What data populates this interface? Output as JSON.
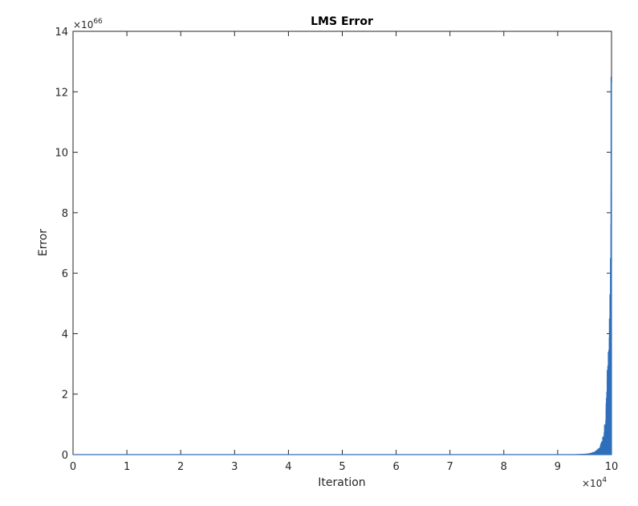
{
  "chart_data": {
    "type": "line",
    "title": "LMS Error",
    "xlabel": "Iteration",
    "ylabel": "Error",
    "x_multiplier": {
      "base": "×10",
      "exponent": "4"
    },
    "y_multiplier": {
      "base": "×10",
      "exponent": "66"
    },
    "xlim": [
      0,
      10
    ],
    "ylim": [
      0,
      14
    ],
    "x_ticks": [
      "0",
      "1",
      "2",
      "3",
      "4",
      "5",
      "6",
      "7",
      "8",
      "9",
      "10"
    ],
    "y_ticks": [
      "0",
      "2",
      "4",
      "6",
      "8",
      "10",
      "12",
      "14"
    ],
    "grid": false,
    "series": [
      {
        "color": "#2f6eba",
        "x": [
          0,
          1,
          2,
          3,
          4,
          5,
          6,
          7,
          8,
          9.0,
          9.2,
          9.4,
          9.5,
          9.6,
          9.65,
          9.7,
          9.75,
          9.8,
          9.84,
          9.87,
          9.9,
          9.92,
          9.94,
          9.96,
          9.97,
          9.98,
          9.99,
          10.0
        ],
        "y": [
          0,
          0,
          0,
          0,
          0,
          0,
          0,
          0,
          0,
          0.01,
          0.01,
          0.02,
          0.03,
          0.05,
          0.08,
          0.12,
          0.2,
          0.35,
          0.6,
          1.0,
          1.7,
          2.8,
          3.4,
          4.5,
          5.3,
          6.5,
          8.9,
          12.5
        ]
      }
    ]
  }
}
